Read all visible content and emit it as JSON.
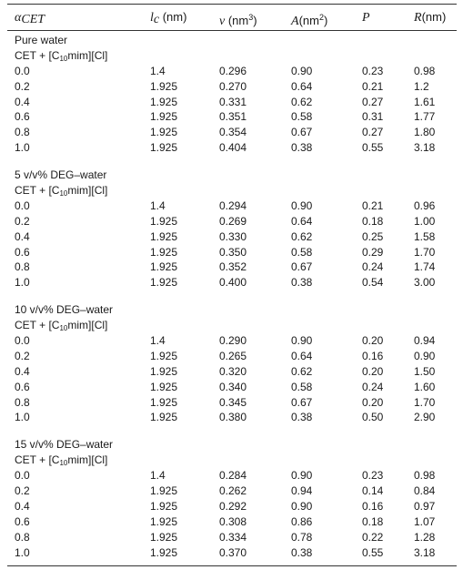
{
  "table": {
    "headers": {
      "alpha": {
        "symbol": "α",
        "subscript": "CET"
      },
      "lc": {
        "symbol": "l",
        "subscript": "c",
        "unit": " (nm)"
      },
      "v": {
        "symbol": "v",
        "unit_pre": " (nm",
        "unit_sup": "3",
        "unit_post": ")"
      },
      "A": {
        "symbol": "A",
        "unit_pre": "(nm",
        "unit_sup": "2",
        "unit_post": ")"
      },
      "P": {
        "symbol": "P"
      },
      "R": {
        "symbol": "R",
        "unit": "(nm)"
      }
    },
    "sections": [
      {
        "title": "Pure water",
        "system": {
          "pre": "CET + [C",
          "sub": "10",
          "post": "mim][Cl]"
        },
        "rows": [
          [
            "0.0",
            "1.4",
            "0.296",
            "0.90",
            "0.23",
            "0.98"
          ],
          [
            "0.2",
            "1.925",
            "0.270",
            "0.64",
            "0.21",
            "1.2"
          ],
          [
            "0.4",
            "1.925",
            "0.331",
            "0.62",
            "0.27",
            "1.61"
          ],
          [
            "0.6",
            "1.925",
            "0.351",
            "0.58",
            "0.31",
            "1.77"
          ],
          [
            "0.8",
            "1.925",
            "0.354",
            "0.67",
            "0.27",
            "1.80"
          ],
          [
            "1.0",
            "1.925",
            "0.404",
            "0.38",
            "0.55",
            "3.18"
          ]
        ]
      },
      {
        "title": "5 v/v% DEG–water",
        "system": {
          "pre": "CET + [C",
          "sub": "10",
          "post": "mim][Cl]"
        },
        "rows": [
          [
            "0.0",
            "1.4",
            "0.294",
            "0.90",
            "0.21",
            "0.96"
          ],
          [
            "0.2",
            "1.925",
            "0.269",
            "0.64",
            "0.18",
            "1.00"
          ],
          [
            "0.4",
            "1.925",
            "0.330",
            "0.62",
            "0.25",
            "1.58"
          ],
          [
            "0.6",
            "1.925",
            "0.350",
            "0.58",
            "0.29",
            "1.70"
          ],
          [
            "0.8",
            "1.925",
            "0.352",
            "0.67",
            "0.24",
            "1.74"
          ],
          [
            "1.0",
            "1.925",
            "0.400",
            "0.38",
            "0.54",
            "3.00"
          ]
        ]
      },
      {
        "title": "10 v/v% DEG–water",
        "system": {
          "pre": "CET + [C",
          "sub": "10",
          "post": "mim][Cl]"
        },
        "rows": [
          [
            "0.0",
            "1.4",
            "0.290",
            "0.90",
            "0.20",
            "0.94"
          ],
          [
            "0.2",
            "1.925",
            "0.265",
            "0.64",
            "0.16",
            "0.90"
          ],
          [
            "0.4",
            "1.925",
            "0.320",
            "0.62",
            "0.20",
            "1.50"
          ],
          [
            "0.6",
            "1.925",
            "0.340",
            "0.58",
            "0.24",
            "1.60"
          ],
          [
            "0.8",
            "1.925",
            "0.345",
            "0.67",
            "0.20",
            "1.70"
          ],
          [
            "1.0",
            "1.925",
            "0.380",
            "0.38",
            "0.50",
            "2.90"
          ]
        ]
      },
      {
        "title": "15 v/v% DEG–water",
        "system": {
          "pre": "CET + [C",
          "sub": "10",
          "post": "mim][Cl]"
        },
        "rows": [
          [
            "0.0",
            "1.4",
            "0.284",
            "0.90",
            "0.23",
            "0.98"
          ],
          [
            "0.2",
            "1.925",
            "0.262",
            "0.94",
            "0.14",
            "0.84"
          ],
          [
            "0.4",
            "1.925",
            "0.292",
            "0.90",
            "0.16",
            "0.97"
          ],
          [
            "0.6",
            "1.925",
            "0.308",
            "0.86",
            "0.18",
            "1.07"
          ],
          [
            "0.8",
            "1.925",
            "0.334",
            "0.78",
            "0.22",
            "1.28"
          ],
          [
            "1.0",
            "1.925",
            "0.370",
            "0.38",
            "0.55",
            "3.18"
          ]
        ]
      }
    ]
  }
}
